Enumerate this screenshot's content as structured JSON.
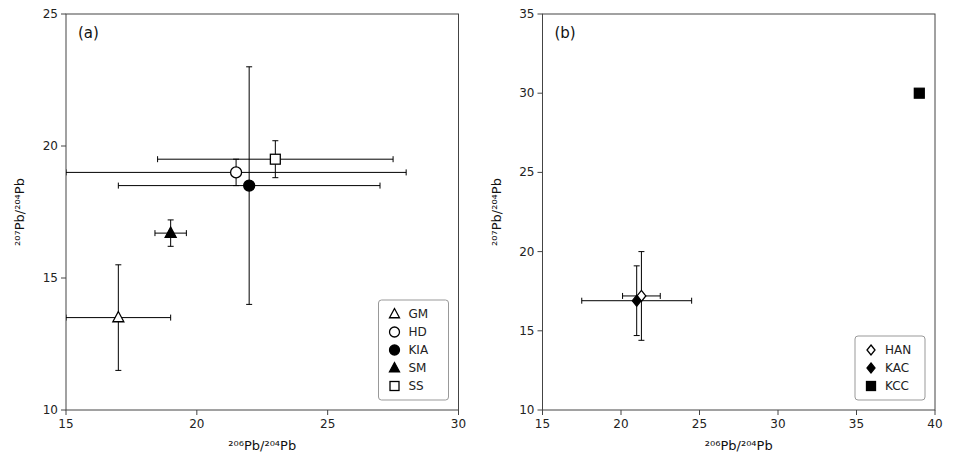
{
  "chart_data": [
    {
      "type": "scatter",
      "x_label": "²⁰⁶Pb/²⁰⁴Pb",
      "y_label": "²⁰⁷Pb/²⁰⁴Pb",
      "annotations": [
        "(a)"
      ],
      "xlim": [
        15,
        30
      ],
      "ylim": [
        10,
        25
      ],
      "xticks": [
        15,
        20,
        25,
        30
      ],
      "yticks": [
        10,
        15,
        20,
        25
      ],
      "grid": false,
      "legend": "lower right",
      "series": [
        {
          "name": "GM",
          "marker": "triangle",
          "color": "white",
          "x": [
            17.0
          ],
          "values": [
            13.5
          ],
          "x_error": [
            2.0
          ],
          "y_error": [
            2.0
          ]
        },
        {
          "name": "HD",
          "marker": "circle",
          "color": "white",
          "x": [
            21.5
          ],
          "values": [
            19.0
          ],
          "x_error": [
            6.5
          ],
          "y_error": [
            0.5
          ]
        },
        {
          "name": "KIA",
          "marker": "circle",
          "color": "black",
          "x": [
            22.0
          ],
          "values": [
            18.5
          ],
          "x_error": [
            5.0
          ],
          "y_error": [
            4.5
          ]
        },
        {
          "name": "SM",
          "marker": "triangle",
          "color": "black",
          "x": [
            19.0
          ],
          "values": [
            16.7
          ],
          "x_error": [
            0.6
          ],
          "y_error": [
            0.5
          ]
        },
        {
          "name": "SS",
          "marker": "square",
          "color": "white",
          "x": [
            23.0
          ],
          "values": [
            19.5
          ],
          "x_error": [
            4.5
          ],
          "y_error": [
            0.7
          ]
        }
      ]
    },
    {
      "type": "scatter",
      "x_label": "²⁰⁶Pb/²⁰⁴Pb",
      "y_label": "²⁰⁷Pb/²⁰⁴Pb",
      "annotations": [
        "(b)"
      ],
      "xlim": [
        15,
        40
      ],
      "ylim": [
        10,
        35
      ],
      "xticks": [
        15,
        20,
        25,
        30,
        35,
        40
      ],
      "yticks": [
        10,
        15,
        20,
        25,
        30,
        35
      ],
      "grid": false,
      "legend": "lower right",
      "series": [
        {
          "name": "HAN",
          "marker": "diamond",
          "color": "white",
          "x": [
            21.3
          ],
          "values": [
            17.2
          ],
          "x_error": [
            1.2
          ],
          "y_error": [
            2.8
          ]
        },
        {
          "name": "KAC",
          "marker": "diamond",
          "color": "black",
          "x": [
            21.0
          ],
          "values": [
            16.9
          ],
          "x_error": [
            3.5
          ],
          "y_error": [
            2.2
          ]
        },
        {
          "name": "KCC",
          "marker": "square",
          "color": "black",
          "x": [
            39.0
          ],
          "values": [
            30.0
          ],
          "x_error": [
            0
          ],
          "y_error": [
            0
          ]
        }
      ]
    }
  ]
}
